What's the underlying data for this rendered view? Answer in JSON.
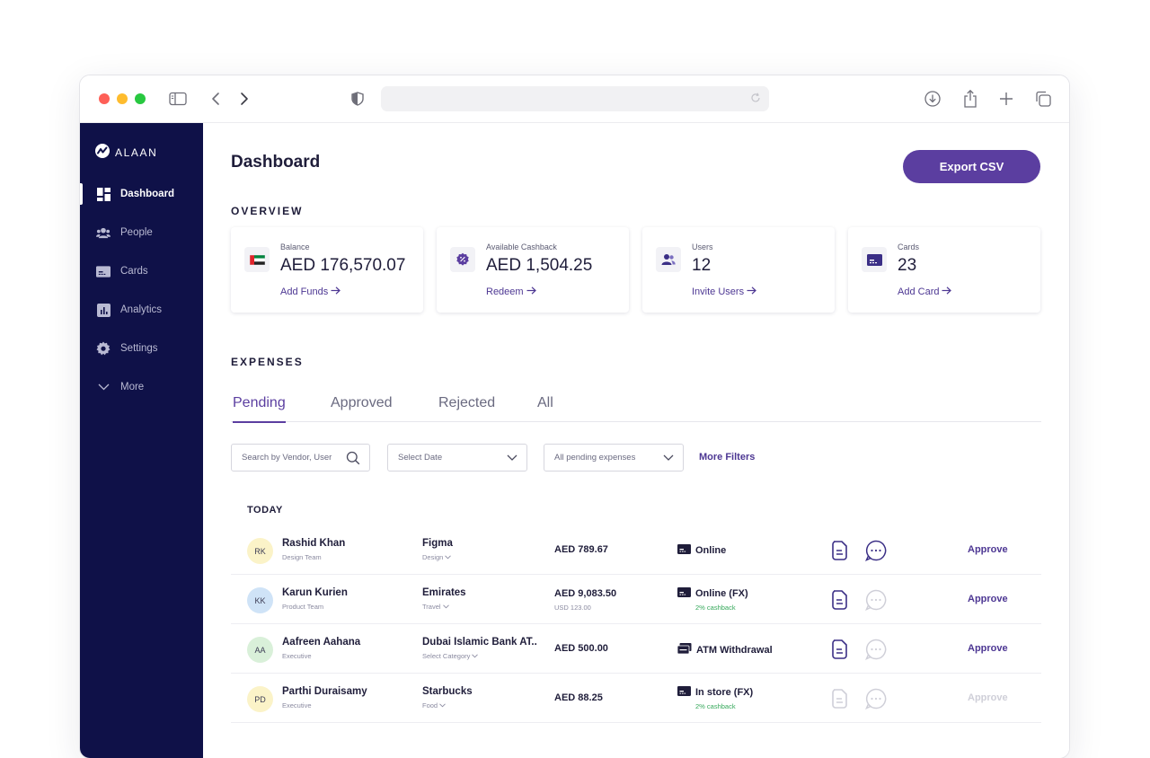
{
  "brand": {
    "name": "ALAAN"
  },
  "sidebar": {
    "items": [
      {
        "label": "Dashboard",
        "icon": "dashboard-icon",
        "active": true
      },
      {
        "label": "People",
        "icon": "people-icon"
      },
      {
        "label": "Cards",
        "icon": "card-icon"
      },
      {
        "label": "Analytics",
        "icon": "analytics-icon"
      },
      {
        "label": "Settings",
        "icon": "gear-icon"
      },
      {
        "label": "More",
        "icon": "chevron-down-icon"
      }
    ]
  },
  "header": {
    "title": "Dashboard",
    "export_label": "Export CSV"
  },
  "overview": {
    "label": "OVERVIEW",
    "cards": [
      {
        "label": "Balance",
        "value": "AED 176,570.07",
        "link": "Add Funds",
        "icon": "uae-flag-icon"
      },
      {
        "label": "Available Cashback",
        "value": "AED 1,504.25",
        "link": "Redeem",
        "icon": "cashback-badge-icon"
      },
      {
        "label": "Users",
        "value": "12",
        "link": "Invite Users",
        "icon": "users-icon"
      },
      {
        "label": "Cards",
        "value": "23",
        "link": "Add Card",
        "icon": "card-icon"
      }
    ]
  },
  "expenses": {
    "label": "EXPENSES",
    "tabs": [
      {
        "label": "Pending",
        "active": true
      },
      {
        "label": "Approved"
      },
      {
        "label": "Rejected"
      },
      {
        "label": "All"
      }
    ],
    "filters": {
      "search_placeholder": "Search by Vendor, User",
      "date_placeholder": "Select Date",
      "status_value": "All pending expenses",
      "more_filters": "More Filters"
    },
    "group_label": "TODAY",
    "rows": [
      {
        "initials": "RK",
        "avatar_color": "#fbf3c8",
        "name": "Rashid Khan",
        "team": "Design Team",
        "vendor": "Figma",
        "category": "Design",
        "amount": "AED 789.67",
        "sub_amount": "",
        "method": "Online",
        "method_icon": "card-icon",
        "cashback": "",
        "approve": "Approve",
        "approve_enabled": true,
        "chat_active": true
      },
      {
        "initials": "KK",
        "avatar_color": "#cfe3f7",
        "name": "Karun Kurien",
        "team": "Product Team",
        "vendor": "Emirates",
        "category": "Travel",
        "amount": "AED 9,083.50",
        "sub_amount": "USD 123.00",
        "method": "Online (FX)",
        "method_icon": "card-icon",
        "cashback": "2% cashback",
        "approve": "Approve",
        "approve_enabled": true,
        "chat_active": false
      },
      {
        "initials": "AA",
        "avatar_color": "#d9f0d9",
        "name": "Aafreen Aahana",
        "team": "Executive",
        "vendor": "Dubai Islamic Bank AT..",
        "category": "Select Category",
        "amount": "AED 500.00",
        "sub_amount": "",
        "method": "ATM Withdrawal",
        "method_icon": "atm-icon",
        "cashback": "",
        "approve": "Approve",
        "approve_enabled": true,
        "chat_active": false
      },
      {
        "initials": "PD",
        "avatar_color": "#fbf3c8",
        "name": "Parthi Duraisamy",
        "team": "Executive",
        "vendor": "Starbucks",
        "category": "Food",
        "amount": "AED 88.25",
        "sub_amount": "",
        "method": "In store (FX)",
        "method_icon": "card-icon",
        "cashback": "2% cashback",
        "approve": "Approve",
        "approve_enabled": false,
        "chat_active": false
      }
    ]
  },
  "colors": {
    "sidebar": "#0f1148",
    "accent": "#5b3ea0",
    "cashback": "#35a85a"
  }
}
